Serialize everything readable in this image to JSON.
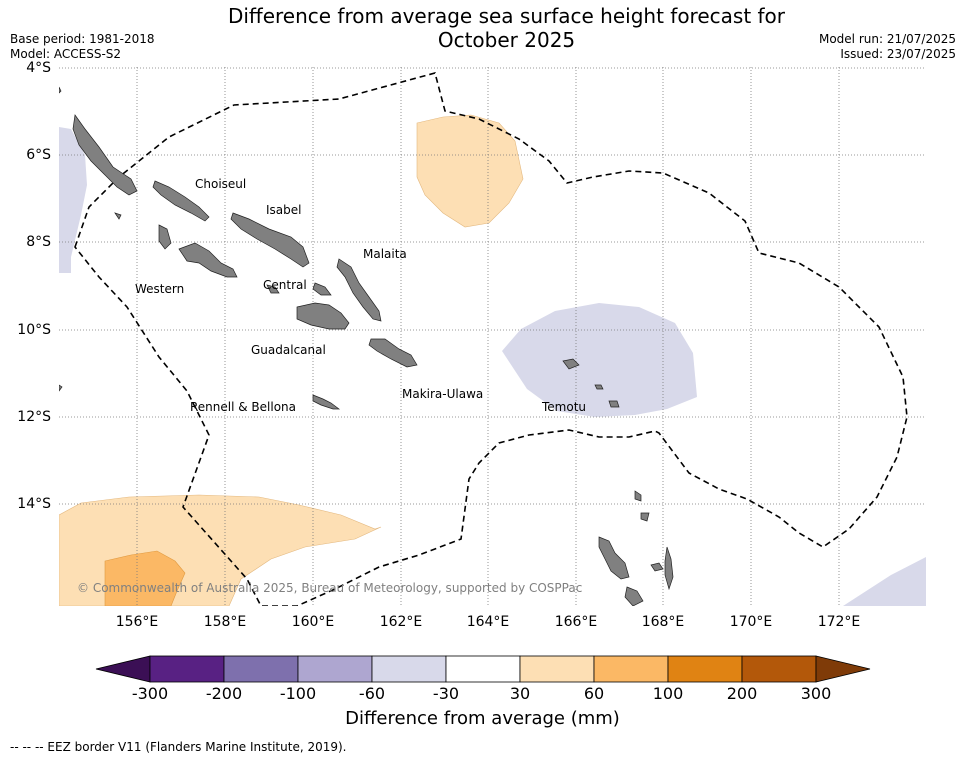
{
  "header": {
    "title_line1": "Difference from average sea surface height forecast for",
    "title_line2": "October 2025",
    "base_period": "Base period: 1981-2018",
    "model": "Model: ACCESS-S2",
    "model_run": "Model run: 21/07/2025",
    "issued": "Issued: 23/07/2025"
  },
  "axes": {
    "lat_labels": [
      "4°S",
      "6°S",
      "8°S",
      "10°S",
      "12°S",
      "14°S"
    ],
    "lon_labels": [
      "156°E",
      "158°E",
      "160°E",
      "162°E",
      "164°E",
      "166°E",
      "168°E",
      "170°E",
      "172°E"
    ]
  },
  "provinces": [
    "Choiseul",
    "Isabel",
    "Malaita",
    "Western",
    "Central",
    "Guadalcanal",
    "Makira-Ulawa",
    "Rennell & Bellona",
    "Temotu"
  ],
  "copyright": "© Commonwealth of Australia 2025, Bureau of Meteorology, supported by COSPPac",
  "colorbar": {
    "tick_labels": [
      "-300",
      "-200",
      "-100",
      "-60",
      "-30",
      "30",
      "60",
      "100",
      "200",
      "300"
    ],
    "colors": [
      "#3b0f55",
      "#582183",
      "#7e70ad",
      "#aea6d0",
      "#d8d9ea",
      "#ffffff",
      "#fddfb4",
      "#fbb865",
      "#e08313",
      "#b3580a",
      "#7f3b08"
    ],
    "label": "Difference from average (mm)"
  },
  "footer": {
    "legend_note": "--  --  -- EEZ border V11 (Flanders Marine Institute, 2019)."
  }
}
